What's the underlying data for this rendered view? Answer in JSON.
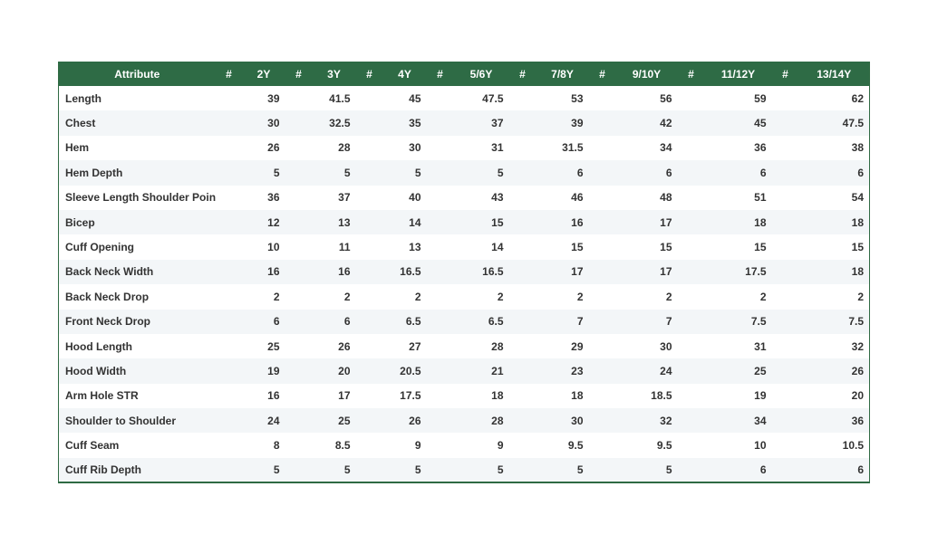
{
  "table": {
    "header": {
      "attribute": "Attribute",
      "hash": "#",
      "sizes": [
        "2Y",
        "3Y",
        "4Y",
        "5/6Y",
        "7/8Y",
        "9/10Y",
        "11/12Y",
        "13/14Y"
      ]
    },
    "rows": [
      {
        "attribute": "Length",
        "values": [
          "39",
          "41.5",
          "45",
          "47.5",
          "53",
          "56",
          "59",
          "62"
        ]
      },
      {
        "attribute": "Chest",
        "values": [
          "30",
          "32.5",
          "35",
          "37",
          "39",
          "42",
          "45",
          "47.5"
        ]
      },
      {
        "attribute": "Hem",
        "values": [
          "26",
          "28",
          "30",
          "31",
          "31.5",
          "34",
          "36",
          "38"
        ]
      },
      {
        "attribute": "Hem Depth",
        "values": [
          "5",
          "5",
          "5",
          "5",
          "6",
          "6",
          "6",
          "6"
        ]
      },
      {
        "attribute": "Sleeve Length Shoulder Point",
        "values": [
          "36",
          "37",
          "40",
          "43",
          "46",
          "48",
          "51",
          "54"
        ]
      },
      {
        "attribute": "Bicep",
        "values": [
          "12",
          "13",
          "14",
          "15",
          "16",
          "17",
          "18",
          "18"
        ]
      },
      {
        "attribute": "Cuff Opening",
        "values": [
          "10",
          "11",
          "13",
          "14",
          "15",
          "15",
          "15",
          "15"
        ]
      },
      {
        "attribute": "Back Neck Width",
        "values": [
          "16",
          "16",
          "16.5",
          "16.5",
          "17",
          "17",
          "17.5",
          "18"
        ]
      },
      {
        "attribute": "Back Neck Drop",
        "values": [
          "2",
          "2",
          "2",
          "2",
          "2",
          "2",
          "2",
          "2"
        ]
      },
      {
        "attribute": "Front Neck Drop",
        "values": [
          "6",
          "6",
          "6.5",
          "6.5",
          "7",
          "7",
          "7.5",
          "7.5"
        ]
      },
      {
        "attribute": "Hood Length",
        "values": [
          "25",
          "26",
          "27",
          "28",
          "29",
          "30",
          "31",
          "32"
        ]
      },
      {
        "attribute": "Hood Width",
        "values": [
          "19",
          "20",
          "20.5",
          "21",
          "23",
          "24",
          "25",
          "26"
        ]
      },
      {
        "attribute": "Arm Hole STR",
        "values": [
          "16",
          "17",
          "17.5",
          "18",
          "18",
          "18.5",
          "19",
          "20"
        ]
      },
      {
        "attribute": "Shoulder to Shoulder",
        "values": [
          "24",
          "25",
          "26",
          "28",
          "30",
          "32",
          "34",
          "36"
        ]
      },
      {
        "attribute": "Cuff Seam",
        "values": [
          "8",
          "8.5",
          "9",
          "9",
          "9.5",
          "9.5",
          "10",
          "10.5"
        ]
      },
      {
        "attribute": "Cuff Rib Depth",
        "values": [
          "5",
          "5",
          "5",
          "5",
          "5",
          "5",
          "6",
          "6"
        ]
      }
    ]
  },
  "colors": {
    "header_bg": "#2e6b45",
    "header_text": "#ffffff",
    "row_alt_bg": "#f3f6f8",
    "border": "#2f6a43"
  }
}
